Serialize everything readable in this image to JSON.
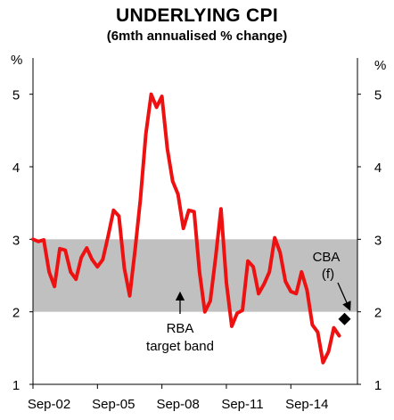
{
  "chart_data": {
    "type": "line",
    "title": "UNDERLYING CPI",
    "subtitle": "(6mth annualised % change)",
    "ylabel_left": "%",
    "ylabel_right": "%",
    "ylim": [
      1,
      5.5
    ],
    "yticks": [
      1,
      2,
      3,
      4,
      5
    ],
    "xticks": [
      "Sep-02",
      "Sep-05",
      "Sep-08",
      "Sep-11",
      "Sep-14"
    ],
    "band": {
      "from": 2,
      "to": 3,
      "color": "#c0c0c0",
      "label_line1": "RBA",
      "label_line2": "target band"
    },
    "series": [
      {
        "color": "#ee1111",
        "x": [
          "Sep-02",
          "Dec-02",
          "Mar-03",
          "Jun-03",
          "Sep-03",
          "Dec-03",
          "Mar-04",
          "Jun-04",
          "Sep-04",
          "Dec-04",
          "Mar-05",
          "Jun-05",
          "Sep-05",
          "Dec-05",
          "Mar-06",
          "Jun-06",
          "Sep-06",
          "Dec-06",
          "Mar-07",
          "Jun-07",
          "Sep-07",
          "Dec-07",
          "Mar-08",
          "Jun-08",
          "Sep-08",
          "Dec-08",
          "Mar-09",
          "Jun-09",
          "Sep-09",
          "Dec-09",
          "Mar-10",
          "Jun-10",
          "Sep-10",
          "Dec-10",
          "Mar-11",
          "Jun-11",
          "Sep-11",
          "Dec-11",
          "Mar-12",
          "Jun-12",
          "Sep-12",
          "Dec-12",
          "Mar-13",
          "Jun-13",
          "Sep-13",
          "Dec-13",
          "Mar-14",
          "Jun-14",
          "Sep-14",
          "Dec-14",
          "Mar-15",
          "Jun-15",
          "Sep-15",
          "Dec-15",
          "Mar-16",
          "Jun-16",
          "Sep-16",
          "Dec-16"
        ],
        "values": [
          3.0,
          2.97,
          2.99,
          2.55,
          2.35,
          2.87,
          2.85,
          2.55,
          2.45,
          2.75,
          2.88,
          2.72,
          2.62,
          2.72,
          3.05,
          3.4,
          3.32,
          2.6,
          2.22,
          2.85,
          3.55,
          4.45,
          5.0,
          4.82,
          4.97,
          4.25,
          3.8,
          3.62,
          3.15,
          3.4,
          3.38,
          2.55,
          2.0,
          2.15,
          2.75,
          3.42,
          2.4,
          1.8,
          1.98,
          2.02,
          2.7,
          2.62,
          2.25,
          2.38,
          2.55,
          3.02,
          2.82,
          2.42,
          2.28,
          2.25,
          2.55,
          2.3,
          1.82,
          1.72,
          1.3,
          1.45,
          1.78,
          1.67
        ]
      }
    ],
    "forecast": {
      "label_line1": "CBA",
      "label_line2": "(f)",
      "x": "Mar-17",
      "value": 1.9
    }
  }
}
